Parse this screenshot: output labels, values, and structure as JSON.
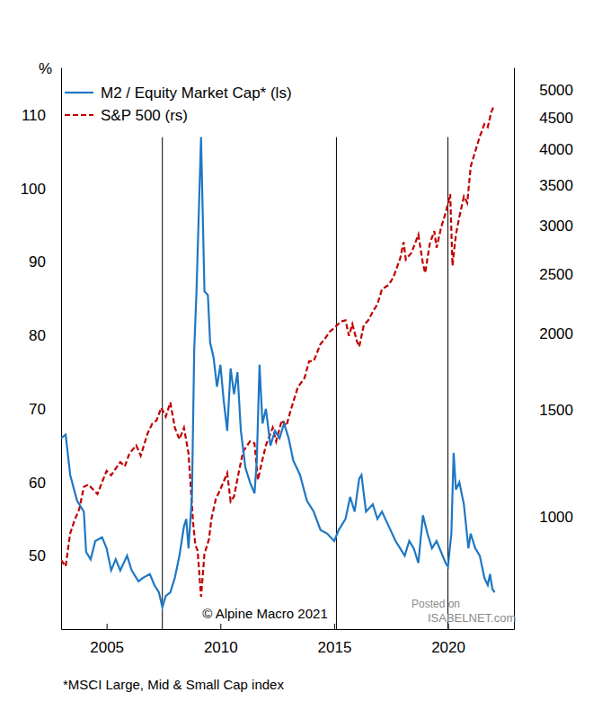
{
  "chart_data": {
    "type": "line",
    "ylabel": "%",
    "legend": "upper left",
    "grid": false,
    "log": "y2",
    "xlim": [
      2003,
      2022.9
    ],
    "xticks": [
      2005,
      2010,
      2015,
      2020
    ],
    "ylim": [
      40,
      116.5
    ],
    "yticks": [
      50,
      60,
      70,
      80,
      90,
      100,
      110
    ],
    "y2lim": [
      655,
      5450
    ],
    "y2ticks": [
      1000,
      1500,
      2000,
      2500,
      3000,
      3500,
      4000,
      4500,
      5000
    ],
    "vlines": {
      "x": [
        2007.45,
        2015.1,
        2020.0
      ],
      "ymax": 107
    },
    "series": [
      {
        "name": "M2 / Equity Market Cap* (ls)",
        "color": "#1f77c4",
        "line_style": "solid",
        "axis": "y",
        "x": [
          2003.0,
          2003.2,
          2003.4,
          2003.7,
          2004.0,
          2004.1,
          2004.3,
          2004.5,
          2004.8,
          2005.0,
          2005.2,
          2005.4,
          2005.6,
          2005.9,
          2006.1,
          2006.4,
          2006.6,
          2006.9,
          2007.1,
          2007.3,
          2007.45,
          2007.6,
          2007.8,
          2008.0,
          2008.2,
          2008.4,
          2008.5,
          2008.6,
          2008.75,
          2008.85,
          2008.95,
          2009.15,
          2009.3,
          2009.45,
          2009.55,
          2009.7,
          2009.85,
          2010.0,
          2010.15,
          2010.3,
          2010.45,
          2010.6,
          2010.75,
          2010.9,
          2011.1,
          2011.3,
          2011.5,
          2011.6,
          2011.72,
          2011.85,
          2012.0,
          2012.2,
          2012.4,
          2012.6,
          2012.8,
          2013.0,
          2013.2,
          2013.5,
          2013.8,
          2014.1,
          2014.4,
          2014.7,
          2015.0,
          2015.2,
          2015.5,
          2015.7,
          2015.9,
          2016.1,
          2016.2,
          2016.4,
          2016.7,
          2016.9,
          2017.1,
          2017.4,
          2017.7,
          2017.9,
          2018.1,
          2018.3,
          2018.5,
          2018.7,
          2018.9,
          2019.1,
          2019.3,
          2019.5,
          2019.7,
          2019.9,
          2020.0,
          2020.15,
          2020.25,
          2020.35,
          2020.5,
          2020.7,
          2020.9,
          2021.0,
          2021.2,
          2021.4,
          2021.6,
          2021.75,
          2021.85,
          2021.95,
          2022.05
        ],
        "values": [
          66,
          66.5,
          61,
          57.5,
          56,
          50.5,
          49.5,
          52,
          52.5,
          51,
          48,
          49.5,
          48,
          50,
          48,
          46.5,
          47,
          47.5,
          46,
          45,
          43,
          44.5,
          45,
          47,
          50,
          54,
          55,
          51,
          58,
          78,
          86,
          107,
          86,
          85.5,
          79,
          77,
          73,
          76,
          71,
          67,
          75.5,
          72,
          75,
          67,
          62,
          60,
          58.5,
          63,
          76,
          68,
          70,
          65,
          67,
          66,
          68,
          66,
          63,
          61,
          57.5,
          56,
          53.5,
          53,
          52,
          53.5,
          55,
          58,
          56,
          60.5,
          61,
          56,
          57,
          55,
          56,
          54,
          52,
          51,
          50,
          52,
          51,
          49,
          55.5,
          53,
          51,
          52,
          50.5,
          49,
          48.5,
          53,
          64,
          59,
          60,
          57,
          51,
          53,
          51,
          50,
          47,
          46,
          47.5,
          45.5,
          45
        ]
      },
      {
        "name": "S&P 500 (rs)",
        "color": "#c00000",
        "line_style": "dashed",
        "axis": "y2",
        "x": [
          2003.0,
          2003.2,
          2003.4,
          2003.6,
          2003.8,
          2004.0,
          2004.2,
          2004.4,
          2004.6,
          2004.8,
          2005.0,
          2005.2,
          2005.4,
          2005.6,
          2005.8,
          2006.0,
          2006.3,
          2006.5,
          2006.8,
          2007.0,
          2007.2,
          2007.4,
          2007.6,
          2007.8,
          2008.0,
          2008.2,
          2008.4,
          2008.6,
          2008.8,
          2008.9,
          2009.0,
          2009.15,
          2009.3,
          2009.5,
          2009.6,
          2009.8,
          2010.0,
          2010.3,
          2010.45,
          2010.6,
          2010.8,
          2011.0,
          2011.3,
          2011.5,
          2011.65,
          2011.8,
          2012.0,
          2012.3,
          2012.45,
          2012.7,
          2012.9,
          2013.1,
          2013.4,
          2013.7,
          2013.9,
          2014.1,
          2014.4,
          2014.6,
          2014.8,
          2015.0,
          2015.3,
          2015.5,
          2015.65,
          2015.8,
          2016.0,
          2016.1,
          2016.3,
          2016.5,
          2016.7,
          2016.9,
          2017.1,
          2017.4,
          2017.6,
          2017.9,
          2018.05,
          2018.15,
          2018.4,
          2018.7,
          2018.9,
          2019.0,
          2019.2,
          2019.4,
          2019.5,
          2019.7,
          2019.9,
          2020.1,
          2020.2,
          2020.35,
          2020.5,
          2020.7,
          2020.85,
          2021.0,
          2021.2,
          2021.4,
          2021.6,
          2021.75,
          2021.9,
          2022.0
        ],
        "values": [
          850,
          830,
          940,
          990,
          1030,
          1120,
          1130,
          1110,
          1090,
          1140,
          1190,
          1170,
          1200,
          1230,
          1210,
          1270,
          1310,
          1260,
          1370,
          1420,
          1440,
          1510,
          1460,
          1540,
          1400,
          1340,
          1400,
          1270,
          980,
          900,
          880,
          740,
          870,
          920,
          990,
          1070,
          1110,
          1180,
          1060,
          1080,
          1180,
          1280,
          1330,
          1320,
          1150,
          1220,
          1310,
          1400,
          1330,
          1440,
          1410,
          1500,
          1630,
          1690,
          1800,
          1800,
          1920,
          1960,
          2010,
          2040,
          2090,
          2100,
          1980,
          2070,
          1940,
          1900,
          2060,
          2100,
          2170,
          2230,
          2360,
          2400,
          2470,
          2650,
          2820,
          2640,
          2710,
          2900,
          2600,
          2510,
          2800,
          2940,
          2760,
          2980,
          3150,
          3380,
          2580,
          2900,
          3100,
          3350,
          3270,
          3750,
          3970,
          4200,
          4400,
          4350,
          4600,
          4700
        ]
      }
    ],
    "credit": "© Alpine Macro 2021",
    "footnote": "*MSCI Large, Mid & Small Cap index",
    "watermark": [
      "Posted on",
      "ISABELNET.com"
    ]
  }
}
